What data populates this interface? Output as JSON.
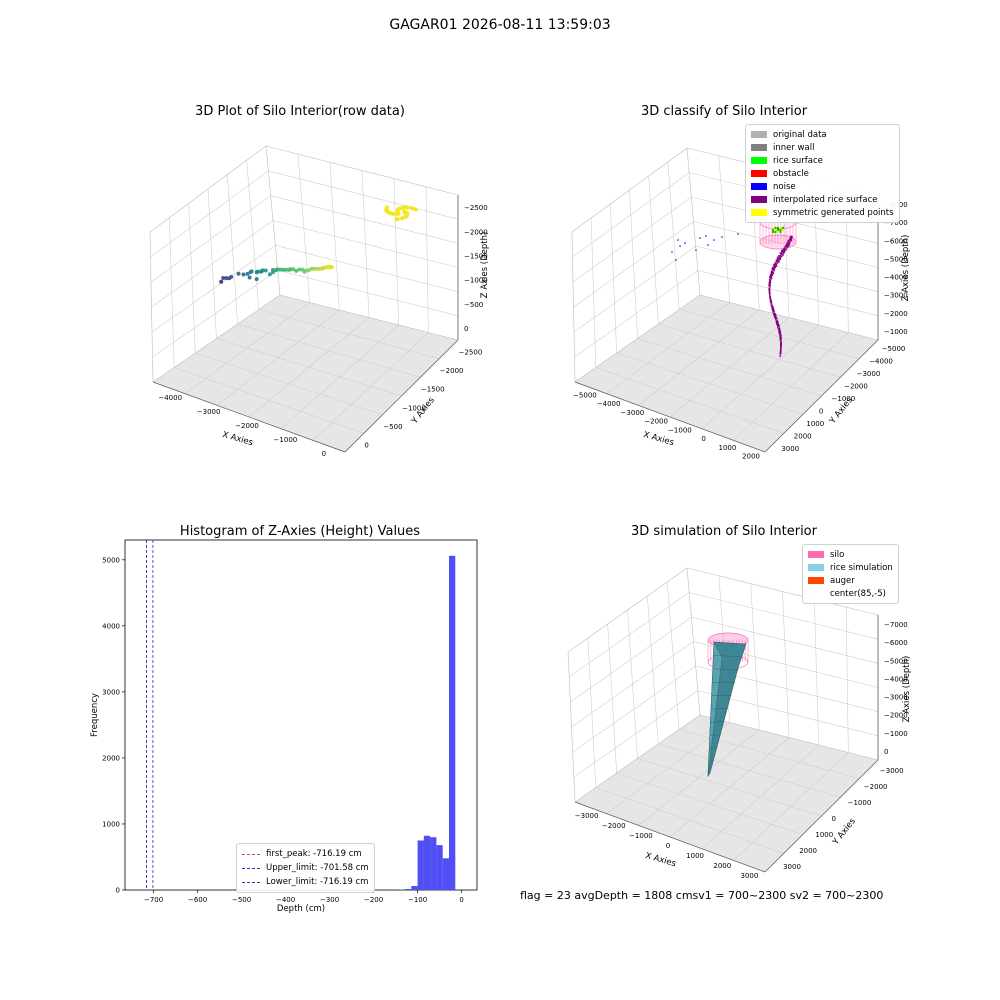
{
  "figure": {
    "title": "GAGAR01 2026-08-11 13:59:03",
    "footer": "flag = 23  avgDepth = 1808 cmsv1 = 700~2300  sv2 = 700~2300"
  },
  "colors": {
    "pane_light": "#f2f2f2",
    "pane_mid": "#ececec",
    "pane_dark": "#e6e6e6",
    "grid": "#cfcfcf",
    "hist_bar": "#4f4ff5",
    "first_peak": "#c24a6a",
    "limit_line": "#2b2bd0",
    "surface": "#3f8694",
    "silo": "#ff69b4"
  },
  "chart_data": [
    {
      "type": "scatter",
      "subtype": "3d",
      "title": "3D Plot of Silo Interior(row data)",
      "xlabel": "X Axies",
      "ylabel": "Y Axies",
      "zlabel": "Z Axies (Depth)",
      "x_ticks": [
        "−4000",
        "−3000",
        "−2000",
        "−1000",
        "0"
      ],
      "y_ticks": [
        "0",
        "−500",
        "−1000",
        "−1500",
        "−2000",
        "−2500"
      ],
      "z_ticks": [
        "0",
        "−500",
        "−1000",
        "−1500",
        "−2000",
        "−2500"
      ],
      "xlim": [
        -4200,
        500
      ],
      "ylim": [
        -2600,
        400
      ],
      "zlim": [
        -2900,
        100
      ],
      "colormap": "viridis",
      "points": [
        [
          -3900,
          -2300,
          -2500
        ],
        [
          -3800,
          -2200,
          -2350
        ],
        [
          -3700,
          -2150,
          -2300
        ],
        [
          -3600,
          -2100,
          -2250
        ],
        [
          -3500,
          -2000,
          -2150
        ],
        [
          -3300,
          -1950,
          -2000
        ],
        [
          -3150,
          -1900,
          -1950
        ],
        [
          -3000,
          -1800,
          -1850
        ],
        [
          -2900,
          -1700,
          -1850
        ],
        [
          -2850,
          -1650,
          -1700
        ],
        [
          -2800,
          -1600,
          -1650
        ],
        [
          -2700,
          -1650,
          -1800
        ],
        [
          -2650,
          -1550,
          -1600
        ],
        [
          -2600,
          -1500,
          -1550
        ],
        [
          -2500,
          -1450,
          -1500
        ],
        [
          -2450,
          -1400,
          -1450
        ],
        [
          -2400,
          -1350,
          -1400
        ],
        [
          -2300,
          -1300,
          -1350
        ],
        [
          -2200,
          -1300,
          -1400
        ],
        [
          -2100,
          -1250,
          -1300
        ],
        [
          -2050,
          -1150,
          -1200
        ],
        [
          -1950,
          -1100,
          -1150
        ],
        [
          -1900,
          -1050,
          -1100
        ],
        [
          -1800,
          -1000,
          -1050
        ],
        [
          -1700,
          -950,
          -1000
        ],
        [
          -1600,
          -900,
          -950
        ],
        [
          -1500,
          -850,
          -900
        ],
        [
          -1450,
          -800,
          -850
        ],
        [
          -1350,
          -750,
          -800
        ],
        [
          -1250,
          -700,
          -780
        ],
        [
          -1150,
          -650,
          -700
        ],
        [
          -1050,
          -600,
          -650
        ],
        [
          -950,
          -500,
          -620
        ],
        [
          -900,
          -450,
          -560
        ],
        [
          -800,
          -400,
          -500
        ],
        [
          -700,
          -350,
          -420
        ],
        [
          -650,
          -300,
          -380
        ],
        [
          -550,
          -250,
          -330
        ],
        [
          -450,
          -200,
          -280
        ],
        [
          -350,
          -150,
          -220
        ],
        [
          -300,
          -100,
          -180
        ],
        [
          -250,
          -80,
          -140
        ],
        [
          -200,
          -50,
          -110
        ],
        [
          -150,
          -30,
          -80
        ],
        [
          -120,
          -20,
          -60
        ],
        [
          -100,
          0,
          -50
        ],
        [
          -80,
          10,
          -40
        ],
        [
          -60,
          20,
          -30
        ],
        [
          -40,
          30,
          -20
        ],
        [
          -20,
          40,
          -10
        ],
        [
          0,
          50,
          0
        ],
        [
          -30,
          20,
          -15
        ],
        [
          -70,
          5,
          -35
        ],
        [
          -90,
          -10,
          -45
        ]
      ]
    },
    {
      "type": "scatter",
      "subtype": "3d",
      "title": "3D classify of Silo Interior",
      "xlabel": "X Axies",
      "ylabel": "Y Axies",
      "zlabel": "Z Axies (Depth)",
      "x_ticks": [
        "−5000",
        "−4000",
        "−3000",
        "−2000",
        "−1000",
        "0",
        "1000",
        "2000"
      ],
      "y_ticks": [
        "3000",
        "2000",
        "1000",
        "0",
        "−1000",
        "−2000",
        "−3000",
        "−4000",
        "−5000"
      ],
      "z_ticks": [
        "−1000",
        "−2000",
        "−3000",
        "−4000",
        "−5000",
        "−6000",
        "−7000",
        "−8000"
      ],
      "xlim": [
        -5600,
        2400
      ],
      "ylim": [
        -5400,
        3600
      ],
      "zlim": [
        -8500,
        -500
      ],
      "legend": [
        {
          "label": "original data",
          "color": "#b0b0b0"
        },
        {
          "label": "inner wall",
          "color": "#808080"
        },
        {
          "label": "rice surface",
          "color": "#00ff00"
        },
        {
          "label": "obstacle",
          "color": "#ff0000"
        },
        {
          "label": "noise",
          "color": "#0000ff"
        },
        {
          "label": "interpolated rice surface",
          "color": "#800080"
        },
        {
          "label": "symmetric generated points",
          "color": "#ffff00"
        }
      ],
      "legend_loc": "upper right"
    },
    {
      "type": "bar",
      "subtype": "histogram",
      "title": "Histogram of Z-Axies (Height) Values",
      "xlabel": "Depth (cm)",
      "ylabel": "Frequency",
      "xlim": [
        -765,
        35
      ],
      "ylim": [
        0,
        5300
      ],
      "x_ticks": [
        -700,
        -600,
        -500,
        -400,
        -300,
        -200,
        -100,
        0
      ],
      "y_ticks": [
        0,
        1000,
        2000,
        3000,
        4000,
        5000
      ],
      "bin_width": 14.3,
      "bins": [
        {
          "x0": -143,
          "value": 8
        },
        {
          "x0": -128.7,
          "value": 15
        },
        {
          "x0": -114.4,
          "value": 60
        },
        {
          "x0": -100.1,
          "value": 750
        },
        {
          "x0": -85.8,
          "value": 820
        },
        {
          "x0": -71.5,
          "value": 800
        },
        {
          "x0": -57.2,
          "value": 680
        },
        {
          "x0": -42.9,
          "value": 480
        },
        {
          "x0": -28.6,
          "value": 5060
        },
        {
          "x0": -14.3,
          "value": 0
        }
      ],
      "vlines": [
        {
          "label": "first_peak: -716.19 cm",
          "x": -716.19,
          "color": "#c24a6a"
        },
        {
          "label": "Upper_limit: -701.58 cm",
          "x": -701.58,
          "color": "#2b2bd0"
        },
        {
          "label": "Lower_limit: -716.19 cm",
          "x": -716.19,
          "color": "#2b2bd0"
        }
      ],
      "legend_loc": "lower center"
    },
    {
      "type": "area",
      "subtype": "3d-surface",
      "title": "3D simulation of Silo Interior",
      "xlabel": "X Axies",
      "ylabel": "Y Axies",
      "zlabel": "Z Axies (Depth)",
      "x_ticks": [
        "−3000",
        "−2000",
        "−1000",
        "0",
        "1000",
        "2000",
        "3000"
      ],
      "y_ticks": [
        "3000",
        "2000",
        "1000",
        "0",
        "−1000",
        "−2000",
        "−3000"
      ],
      "z_ticks": [
        "0",
        "−1000",
        "−2000",
        "−3000",
        "−4000",
        "−5000",
        "−6000",
        "−7000"
      ],
      "xlim": [
        -3500,
        3500
      ],
      "ylim": [
        -3500,
        3500
      ],
      "zlim": [
        -7200,
        200
      ],
      "legend": [
        {
          "label": "silo",
          "color": "#ff69b4"
        },
        {
          "label": "rice simulation",
          "color": "#87ceeb"
        },
        {
          "label": "auger",
          "color": "#ff4500"
        },
        {
          "label": "center(85,-5)",
          "color": ""
        }
      ],
      "legend_loc": "upper right"
    }
  ]
}
